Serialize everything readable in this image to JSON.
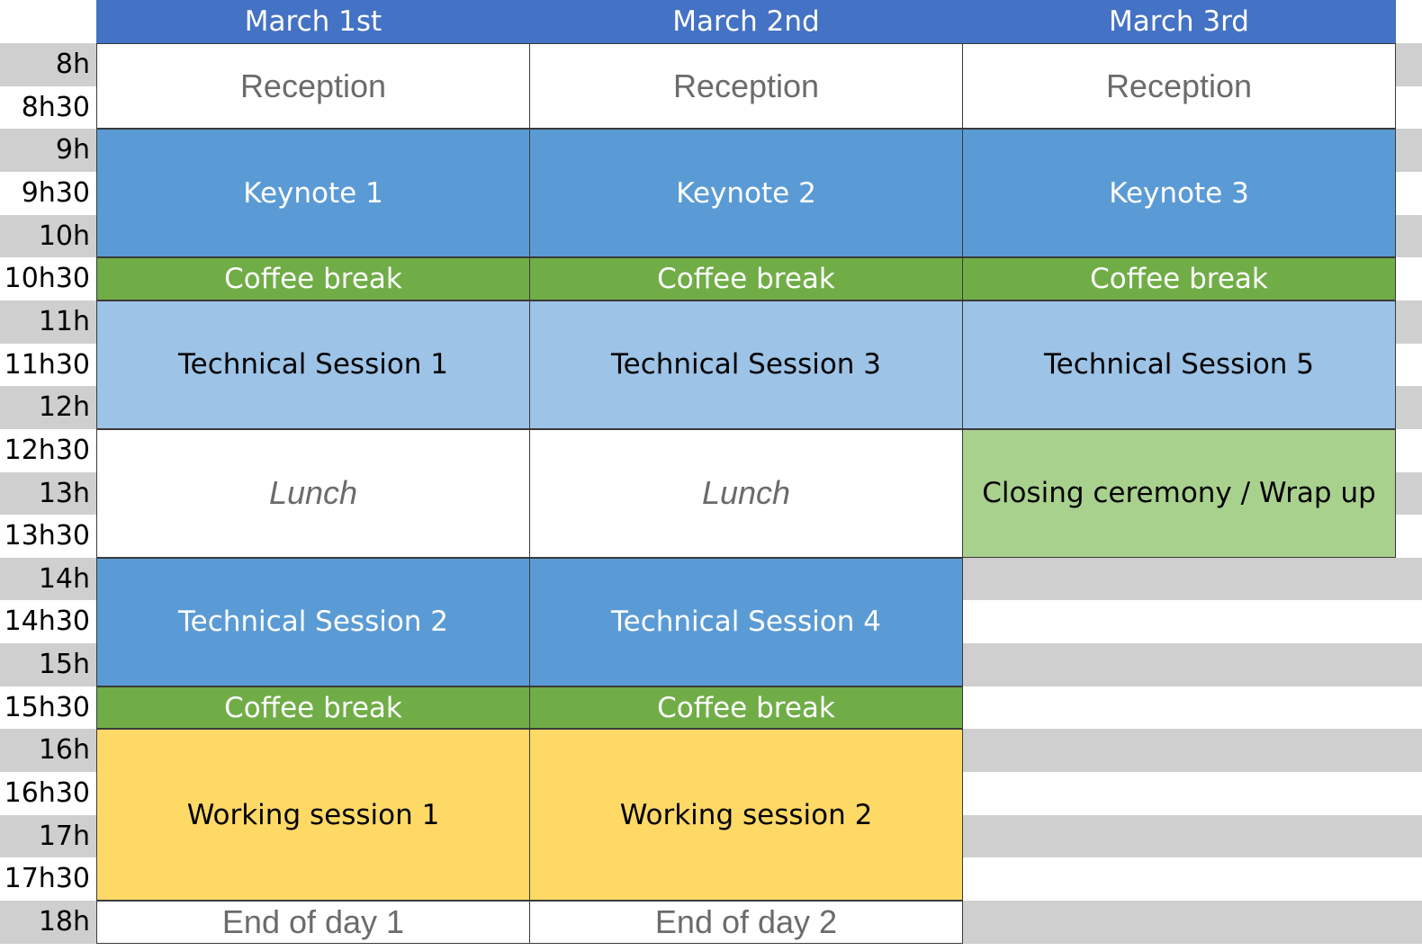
{
  "days": [
    "March 1st",
    "March 2nd",
    "March 3rd"
  ],
  "times": [
    "8h",
    "8h30",
    "9h",
    "9h30",
    "10h",
    "10h30",
    "11h",
    "11h30",
    "12h",
    "12h30",
    "13h",
    "13h30",
    "14h",
    "14h30",
    "15h",
    "15h30",
    "16h",
    "16h30",
    "17h",
    "17h30",
    "18h"
  ],
  "colors": {
    "header": "#4472c4",
    "keynote": "#5b9bd5",
    "coffee_break": "#70ad47",
    "technical_session_light": "#9dc3e6",
    "technical_session_dark": "#5b9bd5",
    "closing": "#a9d18e",
    "working_session": "#ffd966",
    "row_stripe": "#cfcfcf"
  },
  "schedule": [
    [
      {
        "label": "Reception",
        "start": 0,
        "slots": 2,
        "kind": "reception"
      },
      {
        "label": "Keynote 1",
        "start": 2,
        "slots": 3,
        "kind": "keynote"
      },
      {
        "label": "Coffee break",
        "start": 5,
        "slots": 1,
        "kind": "coffee"
      },
      {
        "label": "Technical Session 1",
        "start": 6,
        "slots": 3,
        "kind": "tech-light"
      },
      {
        "label": "Lunch",
        "start": 9,
        "slots": 3,
        "kind": "lunch"
      },
      {
        "label": "Technical Session 2",
        "start": 12,
        "slots": 3,
        "kind": "tech-dark"
      },
      {
        "label": "Coffee break",
        "start": 15,
        "slots": 1,
        "kind": "coffee"
      },
      {
        "label": "Working session 1",
        "start": 16,
        "slots": 4,
        "kind": "working"
      },
      {
        "label": "End of day 1",
        "start": 20,
        "slots": 1,
        "kind": "end"
      }
    ],
    [
      {
        "label": "Reception",
        "start": 0,
        "slots": 2,
        "kind": "reception"
      },
      {
        "label": "Keynote 2",
        "start": 2,
        "slots": 3,
        "kind": "keynote"
      },
      {
        "label": "Coffee break",
        "start": 5,
        "slots": 1,
        "kind": "coffee"
      },
      {
        "label": "Technical Session 3",
        "start": 6,
        "slots": 3,
        "kind": "tech-light"
      },
      {
        "label": "Lunch",
        "start": 9,
        "slots": 3,
        "kind": "lunch"
      },
      {
        "label": "Technical Session 4",
        "start": 12,
        "slots": 3,
        "kind": "tech-dark"
      },
      {
        "label": "Coffee break",
        "start": 15,
        "slots": 1,
        "kind": "coffee"
      },
      {
        "label": "Working session 2",
        "start": 16,
        "slots": 4,
        "kind": "working"
      },
      {
        "label": "End of day 2",
        "start": 20,
        "slots": 1,
        "kind": "end"
      }
    ],
    [
      {
        "label": "Reception",
        "start": 0,
        "slots": 2,
        "kind": "reception"
      },
      {
        "label": "Keynote 3",
        "start": 2,
        "slots": 3,
        "kind": "keynote"
      },
      {
        "label": "Coffee break",
        "start": 5,
        "slots": 1,
        "kind": "coffee"
      },
      {
        "label": "Technical Session 5",
        "start": 6,
        "slots": 3,
        "kind": "tech-light"
      },
      {
        "label": "Closing ceremony / Wrap up",
        "start": 9,
        "slots": 3,
        "kind": "closing"
      }
    ]
  ]
}
